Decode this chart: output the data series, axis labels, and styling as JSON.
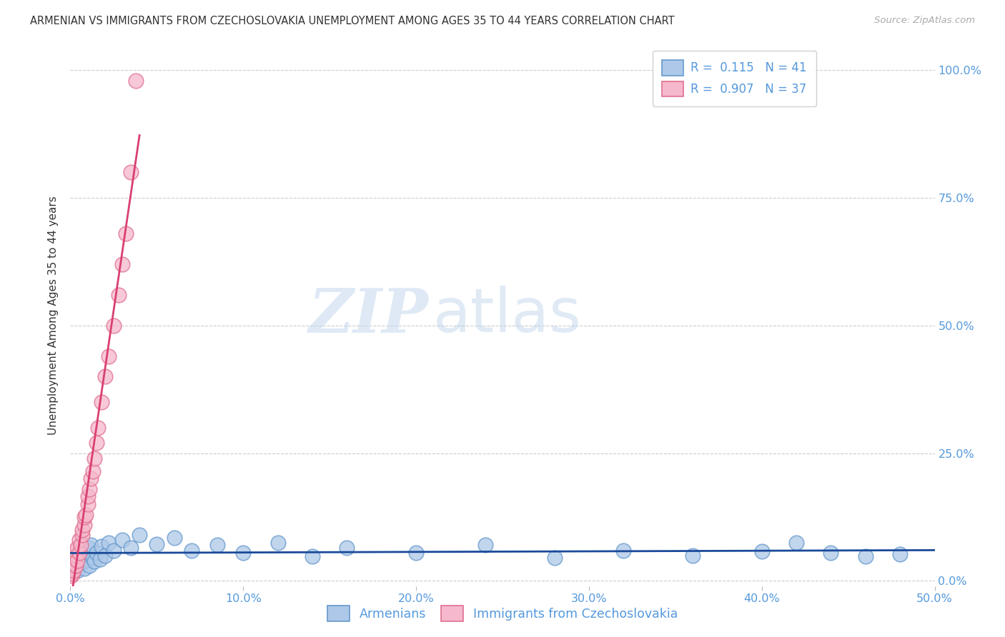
{
  "title": "ARMENIAN VS IMMIGRANTS FROM CZECHOSLOVAKIA UNEMPLOYMENT AMONG AGES 35 TO 44 YEARS CORRELATION CHART",
  "source": "Source: ZipAtlas.com",
  "ylabel": "Unemployment Among Ages 35 to 44 years",
  "xlim": [
    0.0,
    0.5
  ],
  "ylim": [
    -0.01,
    1.05
  ],
  "xtick_vals": [
    0.0,
    0.1,
    0.2,
    0.3,
    0.4,
    0.5
  ],
  "xtick_labels": [
    "0.0%",
    "10.0%",
    "20.0%",
    "30.0%",
    "40.0%",
    "50.0%"
  ],
  "ytick_vals": [
    0.0,
    0.25,
    0.5,
    0.75,
    1.0
  ],
  "ytick_labels": [
    "0.0%",
    "25.0%",
    "50.0%",
    "75.0%",
    "100.0%"
  ],
  "watermark_zip": "ZIP",
  "watermark_atlas": "atlas",
  "legend_R_armenian": "0.115",
  "legend_N_armenian": "41",
  "legend_R_czech": "0.907",
  "legend_N_czech": "37",
  "color_armenian_fill": "#adc8e8",
  "color_armenian_edge": "#6699cc",
  "color_armenian_line": "#1a4a9a",
  "color_czech_fill": "#f5b8cc",
  "color_czech_edge": "#e07090",
  "color_czech_line": "#d94070",
  "axis_tick_color": "#5599dd",
  "grid_color": "#cccccc",
  "title_color": "#333333",
  "source_color": "#aaaaaa",
  "background_color": "#ffffff",
  "arm_x": [
    0.001,
    0.002,
    0.003,
    0.004,
    0.005,
    0.006,
    0.007,
    0.008,
    0.009,
    0.01,
    0.011,
    0.012,
    0.013,
    0.014,
    0.015,
    0.017,
    0.018,
    0.02,
    0.022,
    0.025,
    0.03,
    0.035,
    0.04,
    0.05,
    0.06,
    0.07,
    0.085,
    0.1,
    0.12,
    0.14,
    0.16,
    0.2,
    0.24,
    0.28,
    0.32,
    0.36,
    0.4,
    0.42,
    0.44,
    0.46,
    0.48
  ],
  "arm_y": [
    0.05,
    0.03,
    0.045,
    0.02,
    0.06,
    0.035,
    0.055,
    0.025,
    0.04,
    0.065,
    0.03,
    0.07,
    0.045,
    0.038,
    0.055,
    0.042,
    0.068,
    0.05,
    0.075,
    0.06,
    0.08,
    0.065,
    0.09,
    0.072,
    0.085,
    0.06,
    0.07,
    0.055,
    0.075,
    0.048,
    0.065,
    0.055,
    0.07,
    0.045,
    0.06,
    0.05,
    0.058,
    0.075,
    0.055,
    0.048,
    0.052
  ],
  "czech_x": [
    0.0005,
    0.001,
    0.001,
    0.0015,
    0.002,
    0.002,
    0.002,
    0.003,
    0.003,
    0.003,
    0.004,
    0.004,
    0.005,
    0.005,
    0.006,
    0.007,
    0.007,
    0.008,
    0.008,
    0.009,
    0.01,
    0.01,
    0.011,
    0.012,
    0.013,
    0.014,
    0.015,
    0.016,
    0.018,
    0.02,
    0.022,
    0.025,
    0.028,
    0.03,
    0.032,
    0.035,
    0.038
  ],
  "czech_y": [
    0.01,
    0.015,
    0.025,
    0.03,
    0.02,
    0.035,
    0.045,
    0.03,
    0.05,
    0.06,
    0.04,
    0.065,
    0.055,
    0.08,
    0.07,
    0.09,
    0.1,
    0.11,
    0.125,
    0.13,
    0.15,
    0.165,
    0.18,
    0.2,
    0.215,
    0.24,
    0.27,
    0.3,
    0.35,
    0.4,
    0.44,
    0.5,
    0.56,
    0.62,
    0.68,
    0.8,
    0.98
  ]
}
